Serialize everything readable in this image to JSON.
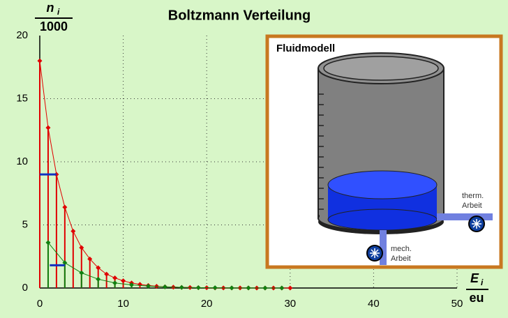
{
  "chart_data": {
    "type": "stem",
    "title": "Boltzmann Verteilung",
    "ylabel": {
      "symbol": "n",
      "index": "i",
      "denominator": "1000"
    },
    "xlabel": {
      "symbol": "E",
      "index": "i",
      "denominator": "eu"
    },
    "xlim": [
      0,
      50
    ],
    "xticks": [
      0,
      10,
      20,
      30,
      40,
      50
    ],
    "ylim": [
      0,
      20
    ],
    "yticks": [
      0,
      5,
      10,
      15,
      20
    ],
    "grid": true,
    "series": [
      {
        "color": "#e00000",
        "x": [
          0,
          1,
          2,
          3,
          4,
          5,
          6,
          7,
          8,
          9,
          10,
          11,
          12,
          13,
          14,
          15,
          16,
          17,
          18,
          19,
          20,
          21,
          22,
          23,
          24,
          25,
          26,
          27,
          28,
          29,
          30
        ],
        "values": [
          18,
          12.7,
          9.0,
          6.4,
          4.5,
          3.2,
          2.3,
          1.6,
          1.1,
          0.8,
          0.57,
          0.4,
          0.29,
          0.2,
          0.14,
          0.1,
          0.07,
          0.05,
          0.04,
          0.03,
          0.02,
          0.01,
          0.01,
          0.01,
          0.01,
          0.01,
          0,
          0,
          0,
          0,
          0
        ]
      },
      {
        "color": "#108010",
        "x": [
          1,
          3,
          5,
          7,
          9,
          11,
          13,
          15,
          17,
          19,
          21,
          23,
          25,
          27,
          29
        ],
        "values": [
          3.6,
          2.0,
          1.2,
          0.7,
          0.4,
          0.25,
          0.15,
          0.09,
          0.05,
          0.03,
          0.02,
          0.01,
          0.01,
          0,
          0
        ]
      }
    ],
    "segments": [
      {
        "color": "#1030c0",
        "x": [
          0,
          2
        ],
        "y": 9
      },
      {
        "color": "#1030c0",
        "x": [
          1.2,
          3
        ],
        "y": 1.8
      }
    ]
  },
  "inset": {
    "title": "Fluidmodell",
    "thermal": [
      "therm.",
      "Arbeit"
    ],
    "mechanical": [
      "mech.",
      "Arbeit"
    ]
  }
}
